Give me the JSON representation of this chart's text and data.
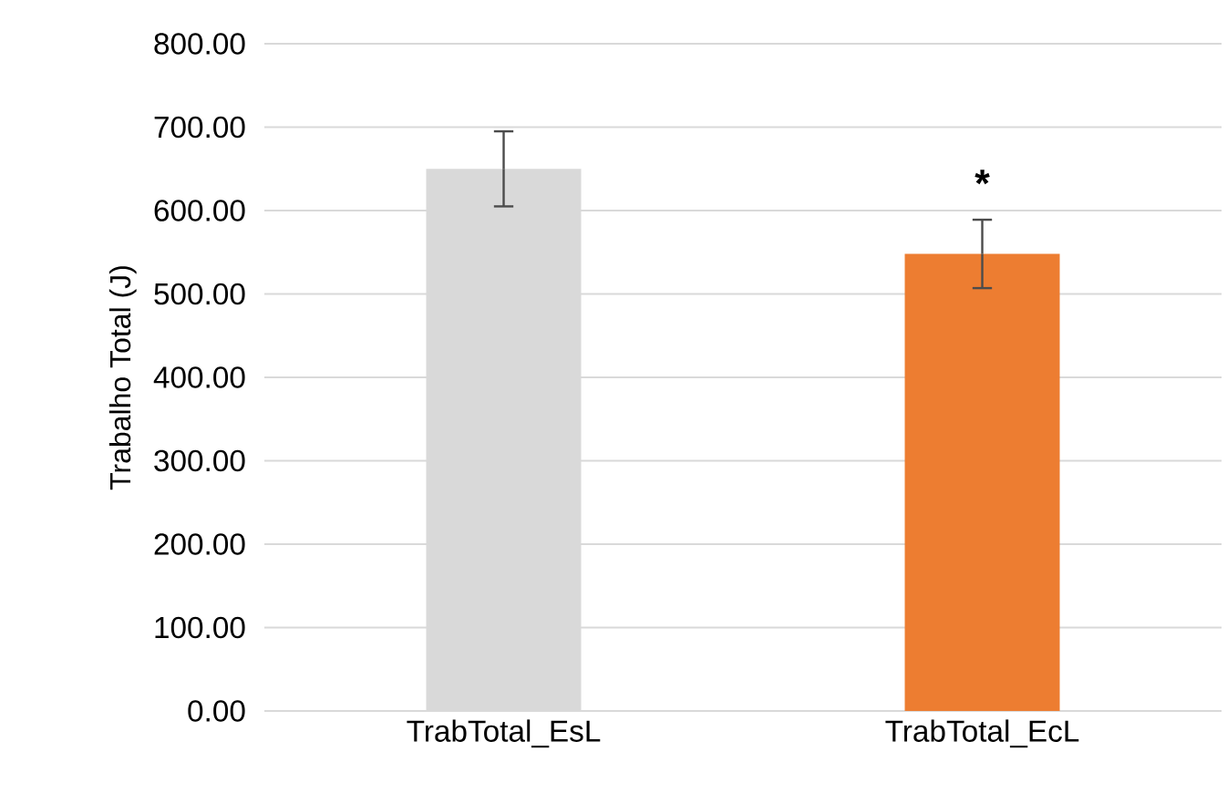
{
  "chart_data": {
    "type": "bar",
    "ylabel": "Trabalho Total (J)",
    "categories": [
      "TrabTotal_EsL",
      "TrabTotal_EcL"
    ],
    "values": [
      650,
      548
    ],
    "errors": [
      45,
      41
    ],
    "colors": [
      "#d9d9d9",
      "#ed7d31"
    ],
    "ylim": [
      0,
      800
    ],
    "yticks": [
      {
        "value": 0,
        "label": "0.00"
      },
      {
        "value": 100,
        "label": "100.00"
      },
      {
        "value": 200,
        "label": "200.00"
      },
      {
        "value": 300,
        "label": "300.00"
      },
      {
        "value": 400,
        "label": "400.00"
      },
      {
        "value": 500,
        "label": "500.00"
      },
      {
        "value": 600,
        "label": "600.00"
      },
      {
        "value": 700,
        "label": "700.00"
      },
      {
        "value": 800,
        "label": "800.00"
      }
    ],
    "grid": "y",
    "annotations": [
      "*"
    ]
  }
}
